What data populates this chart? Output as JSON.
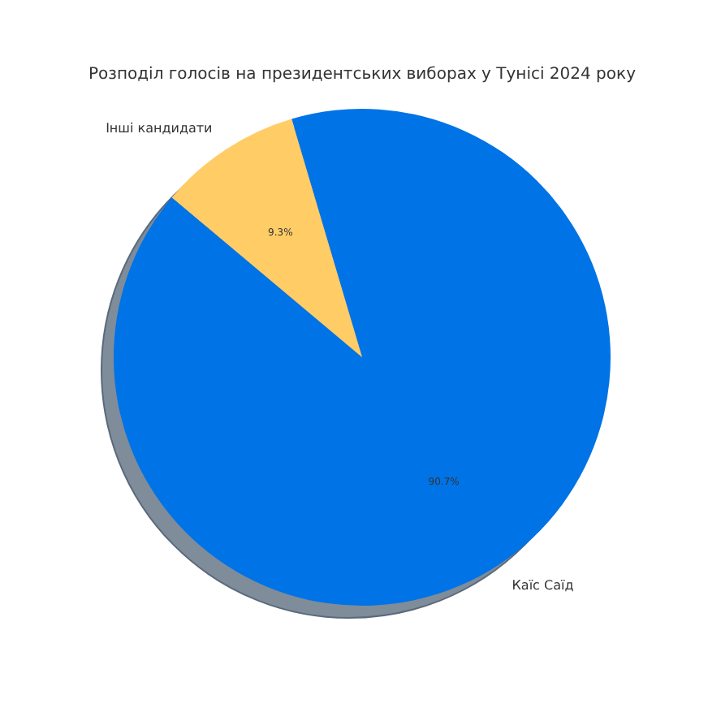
{
  "chart_data": {
    "type": "pie",
    "title": "Розподіл голосів на президентських виборах у Тунісі 2024 року",
    "categories": [
      "Каїс Саїд",
      "Інші кандидати"
    ],
    "values": [
      90.7,
      9.3
    ],
    "colors": [
      "#0073e6",
      "#ffcc66"
    ],
    "value_labels": [
      "90.7%",
      "9.3%"
    ],
    "legend": false
  }
}
